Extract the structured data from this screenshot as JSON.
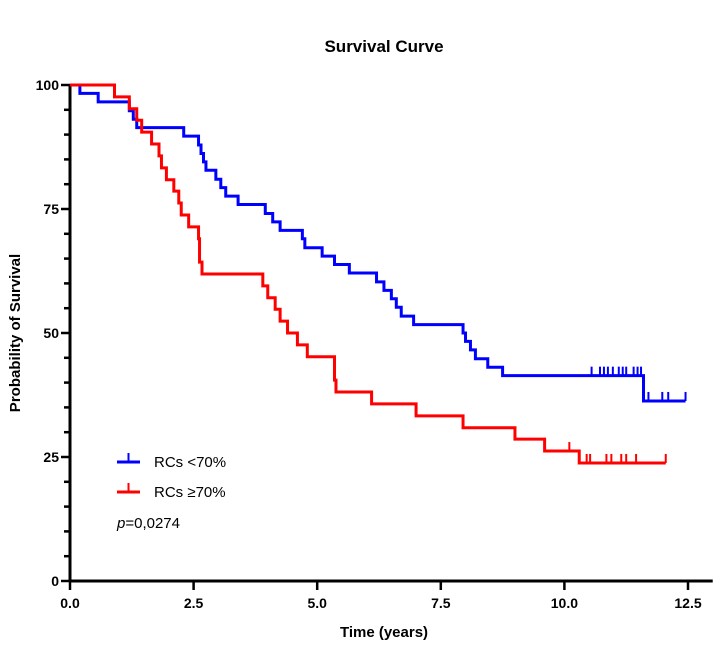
{
  "chart_data": {
    "type": "line",
    "subtype": "kaplan-meier-step",
    "title": "Survival Curve",
    "xlabel": "Time (years)",
    "ylabel": "Probability of Survival",
    "xlim": [
      0,
      13
    ],
    "ylim": [
      0,
      100
    ],
    "xticks": [
      0,
      2.5,
      5,
      7.5,
      10,
      12.5
    ],
    "xtick_labels": [
      "0.0",
      "2.5",
      "5.0",
      "7.5",
      "10.0",
      "12.5"
    ],
    "yticks": [
      0,
      25,
      50,
      75,
      100
    ],
    "ytick_labels": [
      "0",
      "25",
      "50",
      "75",
      "100"
    ],
    "y_minor_step": 5,
    "grid": false,
    "legend_position": "bottom-left",
    "annotation": {
      "italic": "p",
      "text": "=0,0274"
    },
    "series": [
      {
        "name": "RCs <70%",
        "color": "#0000ff",
        "steps": [
          [
            0,
            100
          ],
          [
            0.2,
            98.3
          ],
          [
            0.57,
            96.6
          ],
          [
            1.2,
            94.8
          ],
          [
            1.28,
            93.1
          ],
          [
            1.35,
            91.4
          ],
          [
            2.3,
            89.7
          ],
          [
            2.6,
            87.9
          ],
          [
            2.65,
            86.2
          ],
          [
            2.7,
            84.5
          ],
          [
            2.75,
            82.8
          ],
          [
            2.95,
            81.0
          ],
          [
            3.05,
            79.3
          ],
          [
            3.15,
            77.6
          ],
          [
            3.4,
            75.9
          ],
          [
            3.95,
            74.1
          ],
          [
            4.1,
            72.4
          ],
          [
            4.25,
            70.7
          ],
          [
            4.7,
            69.0
          ],
          [
            4.75,
            67.2
          ],
          [
            5.1,
            65.5
          ],
          [
            5.35,
            63.8
          ],
          [
            5.65,
            62.1
          ],
          [
            6.2,
            60.3
          ],
          [
            6.35,
            58.6
          ],
          [
            6.5,
            56.9
          ],
          [
            6.6,
            55.2
          ],
          [
            6.7,
            53.4
          ],
          [
            6.95,
            51.7
          ],
          [
            7.95,
            50.0
          ],
          [
            8.0,
            48.3
          ],
          [
            8.1,
            46.6
          ],
          [
            8.2,
            44.8
          ],
          [
            8.45,
            43.1
          ],
          [
            8.75,
            41.4
          ],
          [
            11.6,
            36.3
          ]
        ],
        "end": 12.45,
        "censored": [
          [
            10.55,
            41.4
          ],
          [
            10.72,
            41.4
          ],
          [
            10.8,
            41.4
          ],
          [
            10.88,
            41.4
          ],
          [
            10.98,
            41.4
          ],
          [
            11.1,
            41.4
          ],
          [
            11.18,
            41.4
          ],
          [
            11.25,
            41.4
          ],
          [
            11.4,
            41.4
          ],
          [
            11.48,
            41.4
          ],
          [
            11.55,
            41.4
          ],
          [
            11.7,
            36.3
          ],
          [
            11.98,
            36.3
          ],
          [
            12.1,
            36.3
          ],
          [
            12.45,
            36.3
          ]
        ]
      },
      {
        "name": "RCs ≥70%",
        "color": "#ff0000",
        "steps": [
          [
            0,
            100
          ],
          [
            0.9,
            97.6
          ],
          [
            1.2,
            95.2
          ],
          [
            1.35,
            92.9
          ],
          [
            1.45,
            90.5
          ],
          [
            1.65,
            88.1
          ],
          [
            1.8,
            85.7
          ],
          [
            1.85,
            83.3
          ],
          [
            1.95,
            80.9
          ],
          [
            2.1,
            78.6
          ],
          [
            2.2,
            76.2
          ],
          [
            2.25,
            73.8
          ],
          [
            2.4,
            71.4
          ],
          [
            2.6,
            69.0
          ],
          [
            2.62,
            64.3
          ],
          [
            2.67,
            61.9
          ],
          [
            3.9,
            59.5
          ],
          [
            4.0,
            57.1
          ],
          [
            4.15,
            54.8
          ],
          [
            4.25,
            52.4
          ],
          [
            4.4,
            50.0
          ],
          [
            4.6,
            47.6
          ],
          [
            4.8,
            45.2
          ],
          [
            5.35,
            40.5
          ],
          [
            5.38,
            38.1
          ],
          [
            6.1,
            35.7
          ],
          [
            7.0,
            33.3
          ],
          [
            7.95,
            30.9
          ],
          [
            9.0,
            28.6
          ],
          [
            9.6,
            26.2
          ],
          [
            10.3,
            23.8
          ]
        ],
        "end": 12.05,
        "censored": [
          [
            10.1,
            26.2
          ],
          [
            10.45,
            23.8
          ],
          [
            10.52,
            23.8
          ],
          [
            10.85,
            23.8
          ],
          [
            10.95,
            23.8
          ],
          [
            11.15,
            23.8
          ],
          [
            11.25,
            23.8
          ],
          [
            11.45,
            23.8
          ],
          [
            12.05,
            23.8
          ]
        ]
      }
    ]
  }
}
